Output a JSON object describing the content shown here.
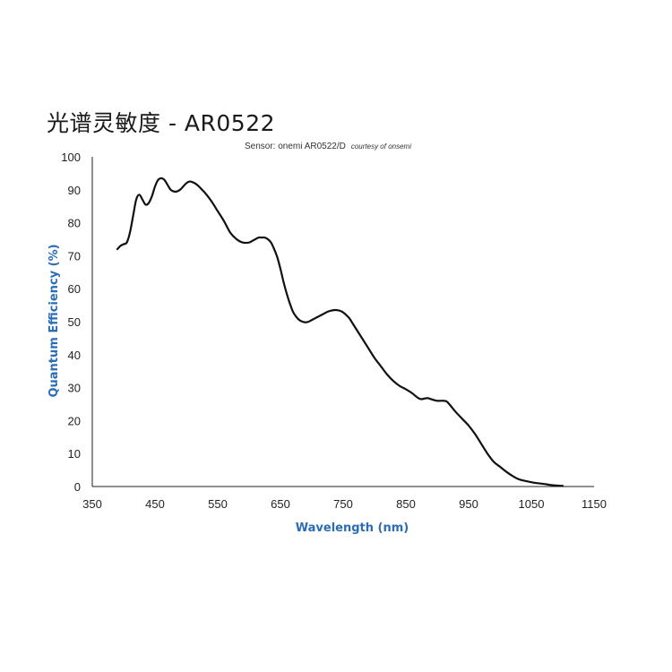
{
  "title": "光谱灵敏度 - AR0522",
  "subtitle": {
    "sensor": "Sensor: onemi AR0522/D",
    "credit": "courtesy of onsemi"
  },
  "colors": {
    "axis_title": "#2a6db5",
    "curve": "#111111"
  },
  "chart_data": {
    "type": "line",
    "title": "光谱灵敏度 - AR0522",
    "xlabel": "Wavelength (nm)",
    "ylabel": "Quantum Efficiency (%)",
    "xlim": [
      350,
      1150
    ],
    "ylim": [
      0,
      100
    ],
    "xticks": [
      350,
      450,
      550,
      650,
      750,
      850,
      950,
      1050,
      1150
    ],
    "yticks": [
      0,
      10,
      20,
      30,
      40,
      50,
      60,
      70,
      80,
      90,
      100
    ],
    "grid": false,
    "series": [
      {
        "x": [
          390,
          395,
          400,
          405,
          410,
          415,
          420,
          425,
          430,
          435,
          440,
          445,
          450,
          455,
          460,
          465,
          470,
          475,
          480,
          485,
          490,
          495,
          500,
          505,
          510,
          515,
          520,
          525,
          530,
          540,
          550,
          560,
          570,
          580,
          590,
          600,
          605,
          610,
          615,
          620,
          625,
          630,
          635,
          640,
          645,
          650,
          655,
          660,
          665,
          670,
          675,
          680,
          685,
          690,
          695,
          700,
          705,
          710,
          715,
          720,
          725,
          730,
          735,
          740,
          745,
          750,
          755,
          760,
          765,
          770,
          775,
          780,
          790,
          800,
          810,
          820,
          830,
          840,
          850,
          860,
          865,
          870,
          875,
          880,
          885,
          890,
          895,
          900,
          905,
          910,
          915,
          920,
          930,
          940,
          950,
          960,
          970,
          980,
          990,
          1000,
          1010,
          1020,
          1030,
          1040,
          1050,
          1060,
          1070,
          1080,
          1090,
          1100
        ],
        "y": [
          72,
          73,
          73.5,
          74,
          77,
          82,
          87,
          88.5,
          87,
          85.5,
          86,
          88,
          91,
          93,
          93.5,
          93,
          91.5,
          90,
          89.5,
          89.5,
          90,
          91,
          92,
          92.5,
          92.3,
          91.8,
          91,
          90,
          89,
          86.5,
          83.5,
          80.5,
          77,
          75,
          74,
          74,
          74.5,
          75,
          75.5,
          75.5,
          75.5,
          75,
          74,
          72,
          69.5,
          66,
          62,
          58.5,
          55.5,
          53,
          51.5,
          50.5,
          50,
          49.8,
          50,
          50.5,
          51,
          51.5,
          52,
          52.5,
          53,
          53.3,
          53.5,
          53.5,
          53.3,
          52.8,
          52,
          51,
          49.5,
          48,
          46.5,
          45,
          42,
          39,
          36.5,
          34,
          32,
          30.5,
          29.5,
          28.3,
          27.5,
          26.8,
          26.5,
          26.7,
          26.8,
          26.5,
          26.2,
          26,
          26,
          26,
          25.8,
          24.8,
          22.5,
          20.5,
          18.5,
          16,
          13,
          10,
          7.5,
          6,
          4.5,
          3.2,
          2.2,
          1.7,
          1.3,
          1,
          0.8,
          0.5,
          0.3,
          0.2
        ]
      }
    ]
  }
}
